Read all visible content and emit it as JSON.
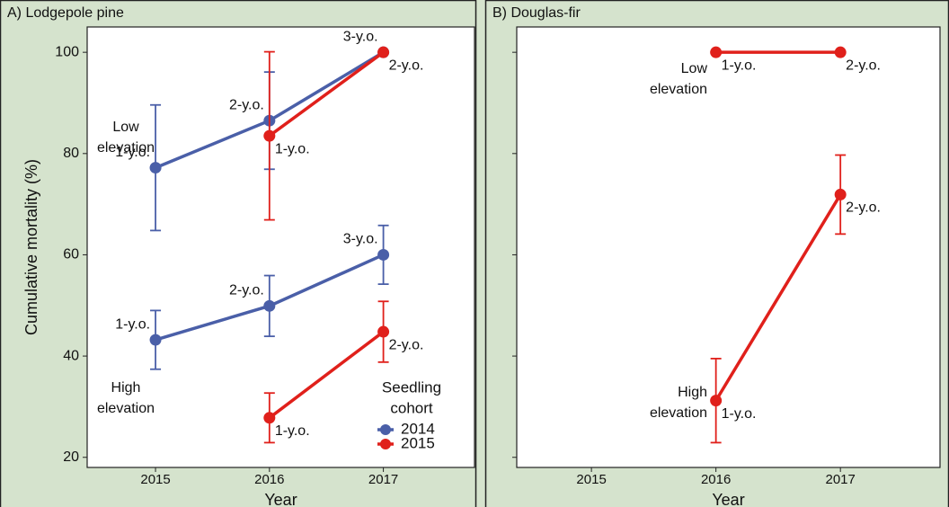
{
  "chart_data": [
    {
      "type": "line",
      "title": "A) Lodgepole pine",
      "x_label": "Year",
      "y_label": "Cumulative mortality (%)",
      "x": [
        2015,
        2016,
        2017
      ],
      "xlim": [
        2014.4,
        2017.8
      ],
      "xticks": [
        2015,
        2016,
        2017
      ],
      "ylim": [
        18,
        105
      ],
      "yticks": [
        20,
        40,
        60,
        80,
        100
      ],
      "ytick_labels": true,
      "legend": {
        "title": [
          "Seedling",
          "cohort"
        ]
      },
      "annotations": [
        {
          "lines": [
            "Low",
            "elevation"
          ]
        },
        {
          "lines": [
            "High",
            "elevation"
          ]
        }
      ],
      "series": [
        {
          "name": "2014",
          "color": "#4a5fa8",
          "values": [
            77.2,
            86.5,
            100
          ],
          "errors": [
            12.4,
            9.6,
            null
          ],
          "point_labels": [
            "1-y.o.",
            "2-y.o.",
            "3-y.o."
          ]
        },
        {
          "name": "2015",
          "color": "#e0201b",
          "values": [
            null,
            83.5,
            100
          ],
          "errors": [
            null,
            16.6,
            null
          ],
          "point_labels": [
            null,
            "1-y.o.",
            "2-y.o."
          ]
        },
        {
          "name": "2014",
          "color": "#4a5fa8",
          "values": [
            43.2,
            49.9,
            60
          ],
          "errors": [
            5.8,
            6,
            5.8
          ],
          "point_labels": [
            "1-y.o.",
            "2-y.o.",
            "3-y.o."
          ]
        },
        {
          "name": "2015",
          "color": "#e0201b",
          "values": [
            null,
            27.8,
            44.8
          ],
          "errors": [
            null,
            4.9,
            6
          ],
          "point_labels": [
            null,
            "1-y.o.",
            "2-y.o."
          ]
        }
      ]
    },
    {
      "type": "line",
      "title": "B) Douglas-fir",
      "x_label": "Year",
      "x": [
        2016,
        2017
      ],
      "xlim": [
        2014.4,
        2017.8
      ],
      "xticks": [
        2015,
        2016,
        2017
      ],
      "ylim": [
        18,
        105
      ],
      "yticks": [
        20,
        40,
        60,
        80,
        100
      ],
      "ytick_labels": false,
      "annotations": [
        {
          "lines": [
            "Low",
            "elevation"
          ]
        },
        {
          "lines": [
            "High",
            "elevation"
          ]
        }
      ],
      "series": [
        {
          "name": "2015",
          "color": "#e0201b",
          "values": [
            100,
            100
          ],
          "errors": [
            null,
            null
          ],
          "point_labels": [
            "1-y.o.",
            "2-y.o."
          ]
        },
        {
          "name": "2015",
          "color": "#e0201b",
          "values": [
            31.2,
            71.9
          ],
          "errors": [
            8.3,
            7.8
          ],
          "point_labels": [
            "1-y.o.",
            "2-y.o."
          ]
        }
      ]
    }
  ]
}
